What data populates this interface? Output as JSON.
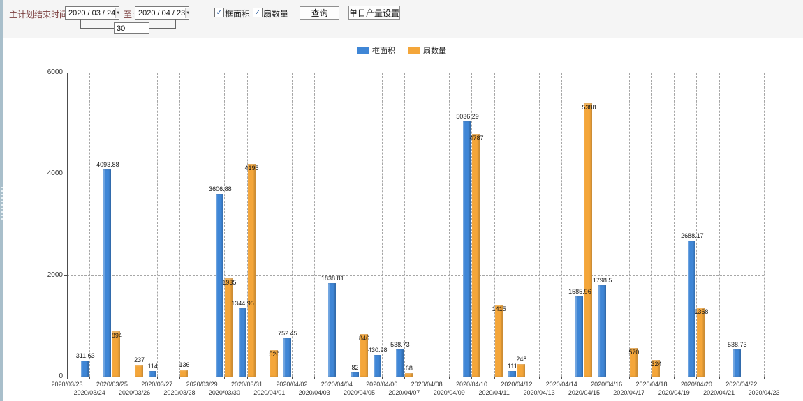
{
  "toolbar": {
    "label_range": "主计划结束时间:",
    "date_from": "2020 / 03 / 24",
    "label_to": "至:",
    "date_to": "2020 / 04 / 23",
    "days_value": "30",
    "checkbox_area": "框面积",
    "checkbox_fans": "扇数量",
    "query_button": "查询",
    "daily_output_button": "单日产量设置"
  },
  "legend": [
    {
      "label": "框面积",
      "color": "#3f86d6"
    },
    {
      "label": "扇数量",
      "color": "#f4a63a"
    }
  ],
  "chart_data": {
    "type": "bar",
    "title": "",
    "xlabel": "",
    "ylabel": "",
    "ylim": [
      0,
      6000
    ],
    "yticks": [
      0,
      2000,
      4000,
      6000
    ],
    "grid": true,
    "legend_position": "top",
    "categories": [
      "2020/03/23",
      "2020/03/24",
      "2020/03/25",
      "2020/03/26",
      "2020/03/27",
      "2020/03/28",
      "2020/03/29",
      "2020/03/30",
      "2020/03/31",
      "2020/04/01",
      "2020/04/02",
      "2020/04/03",
      "2020/04/04",
      "2020/04/05",
      "2020/04/06",
      "2020/04/07",
      "2020/04/08",
      "2020/04/09",
      "2020/04/10",
      "2020/04/11",
      "2020/04/12",
      "2020/04/13",
      "2020/04/14",
      "2020/04/15",
      "2020/04/16",
      "2020/04/17",
      "2020/04/18",
      "2020/04/19",
      "2020/04/20",
      "2020/04/21",
      "2020/04/22",
      "2020/04/23"
    ],
    "series": [
      {
        "name": "框面积",
        "color": "#3f86d6",
        "values": [
          null,
          311.63,
          4093.88,
          null,
          114,
          null,
          null,
          3606.88,
          1344.95,
          null,
          752.45,
          null,
          1838.81,
          82,
          430.98,
          538.73,
          null,
          null,
          5036.29,
          null,
          111,
          null,
          null,
          1585.96,
          1798.5,
          null,
          null,
          null,
          2688.17,
          null,
          538.73,
          null
        ]
      },
      {
        "name": "扇数量",
        "color": "#f4a63a",
        "values": [
          null,
          null,
          894,
          237,
          null,
          136,
          null,
          1935,
          4195,
          526,
          null,
          null,
          null,
          846,
          null,
          68,
          null,
          null,
          4787,
          1415,
          248,
          null,
          null,
          5388,
          null,
          570,
          324,
          null,
          1368,
          null,
          null,
          null
        ]
      }
    ]
  }
}
